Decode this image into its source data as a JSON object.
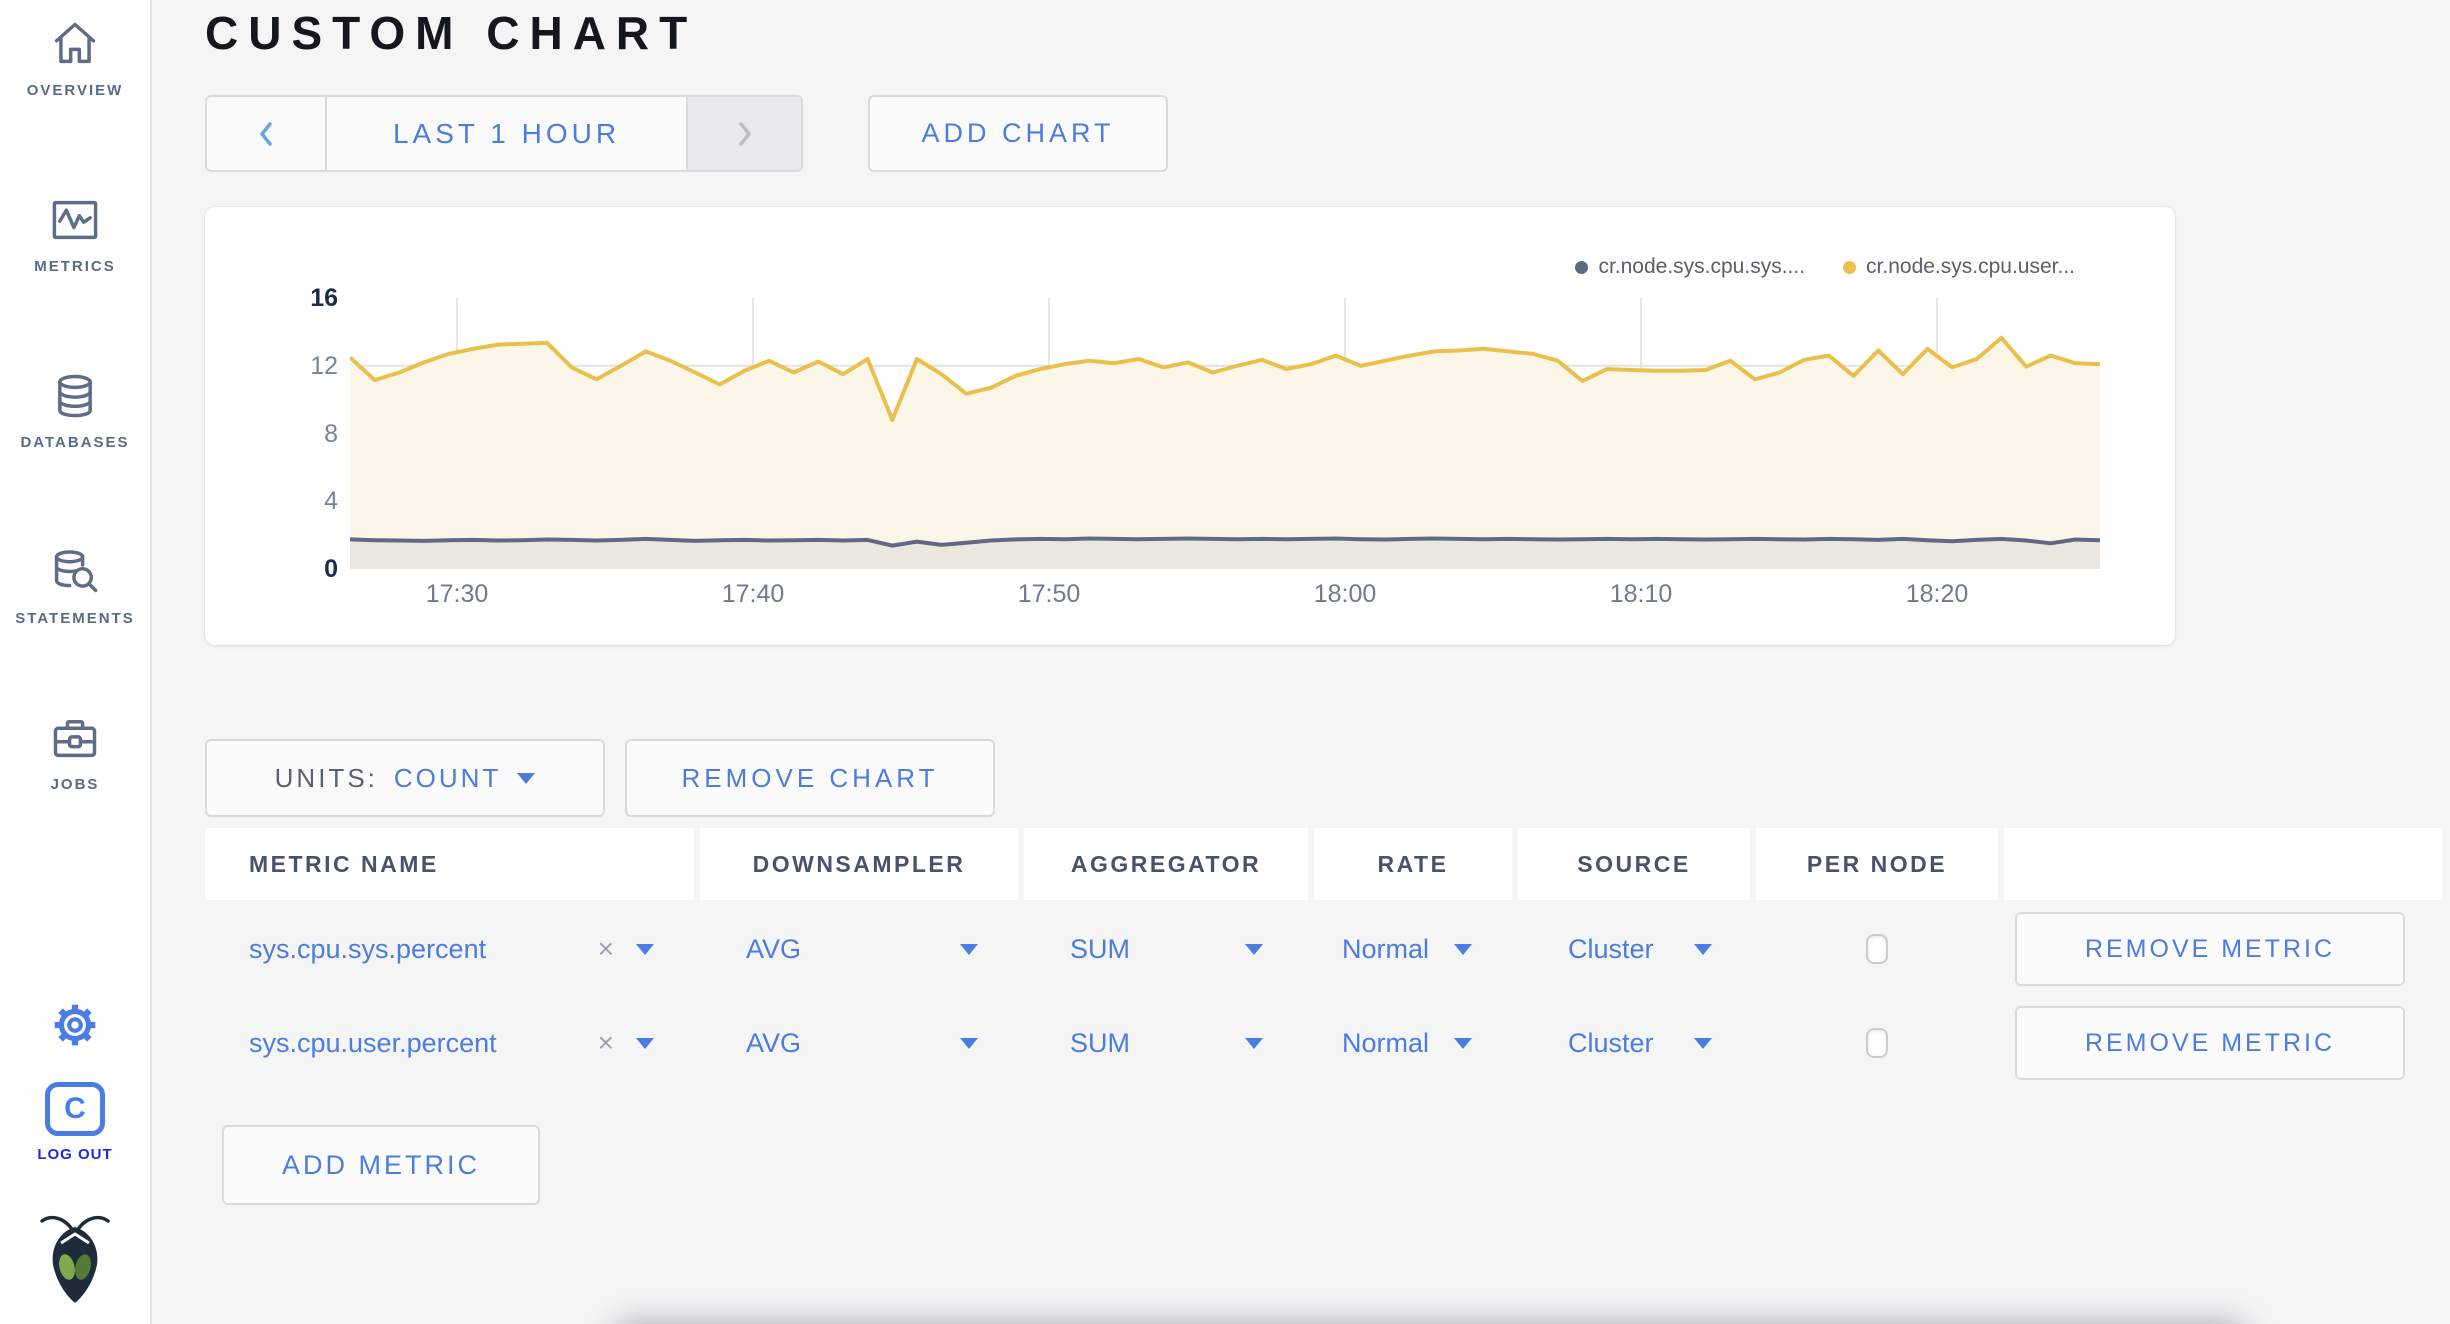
{
  "sidebar": {
    "items": [
      {
        "label": "OVERVIEW"
      },
      {
        "label": "METRICS"
      },
      {
        "label": "DATABASES"
      },
      {
        "label": "STATEMENTS"
      },
      {
        "label": "JOBS"
      }
    ],
    "logout_label": "LOG OUT",
    "c_logo_letter": "C"
  },
  "header": {
    "title": "CUSTOM CHART"
  },
  "toolbar": {
    "time_range_label": "LAST 1 HOUR",
    "add_chart_label": "ADD CHART"
  },
  "chart_controls": {
    "units_label": "UNITS:",
    "units_value": "COUNT",
    "remove_chart_label": "REMOVE CHART"
  },
  "chart_data": {
    "type": "line",
    "title": "",
    "xlabel": "",
    "ylabel": "",
    "x_ticks": [
      "17:30",
      "17:40",
      "17:50",
      "18:00",
      "18:10",
      "18:20"
    ],
    "y_ticks": [
      0,
      4,
      8,
      12,
      16
    ],
    "grid_lines_at": [
      4,
      8,
      12
    ],
    "ylim": [
      0,
      16
    ],
    "legend_position": "top-right",
    "series": [
      {
        "name": "cr.node.sys.cpu.sys....",
        "color": "#5E6A84",
        "fill": "#EBE7DF",
        "values": [
          1.75,
          1.7,
          1.68,
          1.66,
          1.7,
          1.72,
          1.68,
          1.7,
          1.74,
          1.72,
          1.68,
          1.72,
          1.78,
          1.72,
          1.66,
          1.7,
          1.72,
          1.68,
          1.7,
          1.72,
          1.68,
          1.72,
          1.38,
          1.62,
          1.42,
          1.55,
          1.68,
          1.75,
          1.78,
          1.76,
          1.8,
          1.78,
          1.76,
          1.78,
          1.8,
          1.78,
          1.76,
          1.78,
          1.76,
          1.78,
          1.8,
          1.76,
          1.74,
          1.78,
          1.8,
          1.78,
          1.76,
          1.78,
          1.76,
          1.74,
          1.76,
          1.78,
          1.76,
          1.78,
          1.76,
          1.74,
          1.76,
          1.78,
          1.76,
          1.74,
          1.78,
          1.76,
          1.72,
          1.78,
          1.7,
          1.64,
          1.72,
          1.78,
          1.68,
          1.52,
          1.74,
          1.7
        ]
      },
      {
        "name": "cr.node.sys.cpu.user...",
        "color": "#EABF4C",
        "fill": "#FBF6E8",
        "values": [
          12.5,
          11.15,
          11.6,
          12.2,
          12.7,
          13.0,
          13.25,
          13.3,
          13.35,
          11.9,
          11.2,
          12.0,
          12.85,
          12.3,
          11.6,
          10.9,
          11.7,
          12.3,
          11.6,
          12.25,
          11.5,
          12.4,
          8.8,
          12.4,
          11.5,
          10.35,
          10.7,
          11.4,
          11.8,
          12.1,
          12.3,
          12.15,
          12.4,
          11.9,
          12.2,
          11.6,
          12.0,
          12.35,
          11.8,
          12.1,
          12.6,
          12.0,
          12.3,
          12.6,
          12.85,
          12.9,
          13.0,
          12.85,
          12.7,
          12.3,
          11.1,
          11.8,
          11.75,
          11.7,
          11.7,
          11.75,
          12.3,
          11.2,
          11.6,
          12.35,
          12.6,
          11.4,
          12.9,
          11.5,
          13.0,
          11.9,
          12.4,
          13.65,
          11.95,
          12.6,
          12.15,
          12.1
        ]
      }
    ]
  },
  "metrics_table": {
    "columns": [
      "METRIC NAME",
      "DOWNSAMPLER",
      "AGGREGATOR",
      "RATE",
      "SOURCE",
      "PER NODE",
      ""
    ],
    "clear_symbol": "×",
    "rows": [
      {
        "metric_name": "sys.cpu.sys.percent",
        "downsampler": "AVG",
        "aggregator": "SUM",
        "rate": "Normal",
        "source": "Cluster",
        "per_node_checked": false,
        "remove_label": "REMOVE METRIC"
      },
      {
        "metric_name": "sys.cpu.user.percent",
        "downsampler": "AVG",
        "aggregator": "SUM",
        "rate": "Normal",
        "source": "Cluster",
        "per_node_checked": false,
        "remove_label": "REMOVE METRIC"
      }
    ],
    "add_metric_label": "ADD METRIC"
  }
}
